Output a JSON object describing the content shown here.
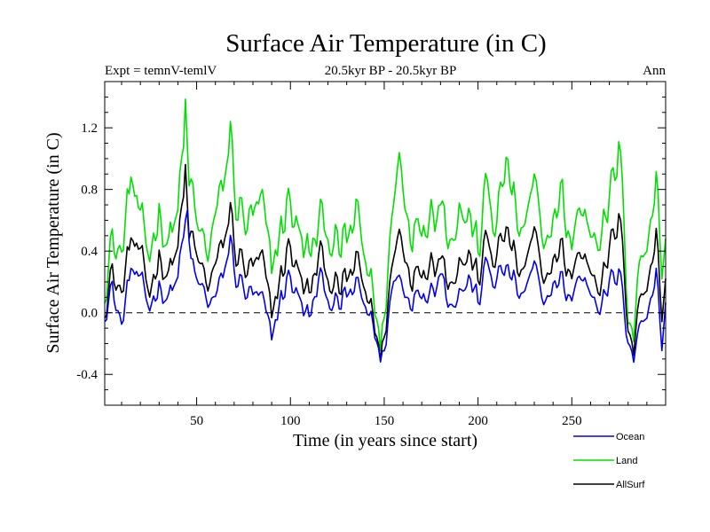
{
  "chart_data": {
    "type": "line",
    "title": "Surface Air Temperature (in C)",
    "subtitle": "20.5kyr BP - 20.5kyr BP",
    "experiment_label": "Expt = temnV-temlV",
    "season_label": "Ann",
    "xlabel": "Time (in years since start)",
    "ylabel": "Surface Air Temperature (in C)",
    "xlim": [
      1,
      300
    ],
    "ylim": [
      -0.6,
      1.5
    ],
    "x_ticks": [
      50,
      100,
      150,
      200,
      250
    ],
    "x_tick_labels": [
      "50",
      "100",
      "150",
      "200",
      "250"
    ],
    "y_ticks": [
      -0.4,
      0.0,
      0.4,
      0.8,
      1.2
    ],
    "y_tick_labels": [
      "-0.4",
      "0.0",
      "0.4",
      "0.8",
      "1.2"
    ],
    "reference_line": 0.0,
    "legend_position": "bottom-right",
    "anchor_points": {
      "Ocean": [
        [
          1,
          0.05
        ],
        [
          5,
          0.15
        ],
        [
          10,
          -0.1
        ],
        [
          15,
          0.3
        ],
        [
          20,
          0.15
        ],
        [
          25,
          0.05
        ],
        [
          30,
          0.2
        ],
        [
          35,
          0.1
        ],
        [
          40,
          0.25
        ],
        [
          43,
          0.45
        ],
        [
          45,
          0.65
        ],
        [
          47,
          0.3
        ],
        [
          50,
          0.2
        ],
        [
          55,
          0.1
        ],
        [
          60,
          0.05
        ],
        [
          65,
          0.3
        ],
        [
          68,
          0.45
        ],
        [
          72,
          0.2
        ],
        [
          78,
          0.1
        ],
        [
          85,
          0.05
        ],
        [
          90,
          -0.15
        ],
        [
          95,
          0.1
        ],
        [
          100,
          0.25
        ],
        [
          105,
          0.05
        ],
        [
          110,
          -0.05
        ],
        [
          115,
          0.2
        ],
        [
          120,
          0.15
        ],
        [
          125,
          0.0
        ],
        [
          130,
          0.1
        ],
        [
          135,
          0.15
        ],
        [
          140,
          0.05
        ],
        [
          145,
          -0.1
        ],
        [
          148,
          -0.35
        ],
        [
          150,
          -0.2
        ],
        [
          155,
          0.2
        ],
        [
          158,
          0.25
        ],
        [
          165,
          0.1
        ],
        [
          170,
          0.15
        ],
        [
          175,
          0.2
        ],
        [
          180,
          0.25
        ],
        [
          185,
          0.1
        ],
        [
          190,
          0.15
        ],
        [
          195,
          0.2
        ],
        [
          200,
          0.1
        ],
        [
          205,
          0.3
        ],
        [
          210,
          0.2
        ],
        [
          215,
          0.3
        ],
        [
          220,
          0.15
        ],
        [
          225,
          0.1
        ],
        [
          230,
          0.25
        ],
        [
          235,
          0.1
        ],
        [
          240,
          0.15
        ],
        [
          245,
          0.2
        ],
        [
          250,
          0.1
        ],
        [
          255,
          0.25
        ],
        [
          260,
          0.15
        ],
        [
          265,
          0.1
        ],
        [
          270,
          0.15
        ],
        [
          275,
          0.25
        ],
        [
          280,
          -0.1
        ],
        [
          283,
          -0.3
        ],
        [
          285,
          -0.15
        ],
        [
          290,
          0.05
        ],
        [
          295,
          0.25
        ],
        [
          298,
          -0.2
        ],
        [
          300,
          0.05
        ]
      ],
      "Land": [
        [
          1,
          0.25
        ],
        [
          5,
          0.45
        ],
        [
          10,
          0.35
        ],
        [
          15,
          0.9
        ],
        [
          20,
          0.5
        ],
        [
          25,
          0.4
        ],
        [
          30,
          0.7
        ],
        [
          35,
          0.45
        ],
        [
          40,
          0.7
        ],
        [
          43,
          1.0
        ],
        [
          44,
          1.3
        ],
        [
          46,
          0.85
        ],
        [
          50,
          0.55
        ],
        [
          55,
          0.4
        ],
        [
          60,
          0.55
        ],
        [
          65,
          0.9
        ],
        [
          68,
          1.15
        ],
        [
          72,
          0.65
        ],
        [
          78,
          0.55
        ],
        [
          85,
          0.65
        ],
        [
          90,
          0.3
        ],
        [
          95,
          0.55
        ],
        [
          100,
          0.75
        ],
        [
          105,
          0.45
        ],
        [
          110,
          0.35
        ],
        [
          115,
          0.55
        ],
        [
          120,
          0.6
        ],
        [
          125,
          0.35
        ],
        [
          130,
          0.45
        ],
        [
          135,
          0.6
        ],
        [
          140,
          0.35
        ],
        [
          145,
          0.1
        ],
        [
          148,
          -0.3
        ],
        [
          150,
          0.05
        ],
        [
          155,
          0.7
        ],
        [
          158,
          1.05
        ],
        [
          162,
          0.75
        ],
        [
          165,
          0.55
        ],
        [
          170,
          0.6
        ],
        [
          175,
          0.75
        ],
        [
          180,
          0.7
        ],
        [
          185,
          0.55
        ],
        [
          190,
          0.7
        ],
        [
          195,
          0.6
        ],
        [
          200,
          0.45
        ],
        [
          205,
          0.8
        ],
        [
          210,
          0.55
        ],
        [
          215,
          1.0
        ],
        [
          220,
          0.6
        ],
        [
          225,
          0.5
        ],
        [
          230,
          0.75
        ],
        [
          235,
          0.5
        ],
        [
          240,
          0.55
        ],
        [
          245,
          0.75
        ],
        [
          250,
          0.45
        ],
        [
          255,
          0.7
        ],
        [
          260,
          0.55
        ],
        [
          265,
          0.6
        ],
        [
          270,
          0.65
        ],
        [
          275,
          1.05
        ],
        [
          278,
          0.6
        ],
        [
          280,
          0.1
        ],
        [
          283,
          -0.15
        ],
        [
          285,
          0.2
        ],
        [
          290,
          0.55
        ],
        [
          295,
          0.85
        ],
        [
          298,
          0.3
        ],
        [
          300,
          0.45
        ]
      ],
      "AllSurf": [
        [
          1,
          0.1
        ],
        [
          5,
          0.25
        ],
        [
          10,
          0.1
        ],
        [
          15,
          0.5
        ],
        [
          20,
          0.3
        ],
        [
          25,
          0.15
        ],
        [
          30,
          0.4
        ],
        [
          35,
          0.25
        ],
        [
          40,
          0.45
        ],
        [
          43,
          0.7
        ],
        [
          44,
          0.9
        ],
        [
          46,
          0.5
        ],
        [
          50,
          0.35
        ],
        [
          55,
          0.2
        ],
        [
          60,
          0.25
        ],
        [
          65,
          0.5
        ],
        [
          68,
          0.65
        ],
        [
          72,
          0.35
        ],
        [
          78,
          0.25
        ],
        [
          85,
          0.3
        ],
        [
          90,
          0.0
        ],
        [
          95,
          0.25
        ],
        [
          100,
          0.45
        ],
        [
          105,
          0.2
        ],
        [
          110,
          0.1
        ],
        [
          115,
          0.35
        ],
        [
          120,
          0.3
        ],
        [
          125,
          0.1
        ],
        [
          130,
          0.2
        ],
        [
          135,
          0.3
        ],
        [
          140,
          0.15
        ],
        [
          145,
          -0.05
        ],
        [
          148,
          -0.35
        ],
        [
          150,
          -0.1
        ],
        [
          155,
          0.35
        ],
        [
          158,
          0.55
        ],
        [
          162,
          0.4
        ],
        [
          165,
          0.25
        ],
        [
          170,
          0.3
        ],
        [
          175,
          0.4
        ],
        [
          180,
          0.35
        ],
        [
          185,
          0.25
        ],
        [
          190,
          0.35
        ],
        [
          195,
          0.35
        ],
        [
          200,
          0.25
        ],
        [
          205,
          0.45
        ],
        [
          210,
          0.35
        ],
        [
          215,
          0.55
        ],
        [
          220,
          0.3
        ],
        [
          225,
          0.25
        ],
        [
          230,
          0.45
        ],
        [
          235,
          0.25
        ],
        [
          240,
          0.3
        ],
        [
          245,
          0.4
        ],
        [
          250,
          0.25
        ],
        [
          255,
          0.4
        ],
        [
          260,
          0.3
        ],
        [
          265,
          0.25
        ],
        [
          270,
          0.35
        ],
        [
          275,
          0.6
        ],
        [
          278,
          0.3
        ],
        [
          280,
          0.0
        ],
        [
          283,
          -0.25
        ],
        [
          285,
          0.0
        ],
        [
          290,
          0.25
        ],
        [
          295,
          0.5
        ],
        [
          298,
          0.0
        ],
        [
          300,
          0.2
        ]
      ]
    },
    "series": [
      {
        "name": "Land",
        "color": "#00e000"
      },
      {
        "name": "AllSurf",
        "color": "#000000"
      },
      {
        "name": "Ocean",
        "color": "#0000ee"
      }
    ],
    "legend_entries": [
      {
        "name": "Ocean",
        "color": "#0000ee"
      },
      {
        "name": "Land",
        "color": "#00e000"
      },
      {
        "name": "AllSurf",
        "color": "#000000"
      }
    ]
  }
}
